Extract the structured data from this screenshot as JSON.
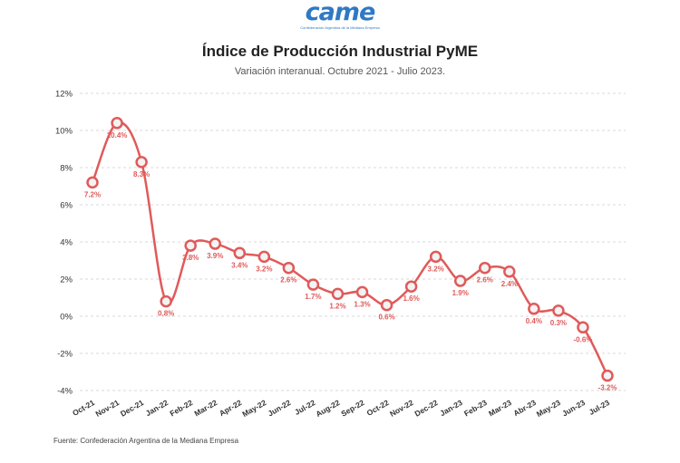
{
  "logo": {
    "text": "came",
    "subtext": "Confederación Argentina de la Mediana Empresa"
  },
  "source": "Fuente: Confederación Argentina de la Mediana Empresa",
  "colors": {
    "series": "#e05a5a",
    "marker_fill": "#f3f3f3",
    "grid": "#d9d9d9",
    "logo": "#2f79c4"
  },
  "chart_data": {
    "type": "line",
    "title": "Índice de Producción Industrial PyME",
    "subtitle": "Variación interanual. Octubre 2021 - Julio 2023.",
    "xlabel": "",
    "ylabel": "",
    "categories": [
      "Oct-21",
      "Nov-21",
      "Dec-21",
      "Jan-22",
      "Feb-22",
      "Mar-22",
      "Apr-22",
      "May-22",
      "Jun-22",
      "Jul-22",
      "Aug-22",
      "Sep-22",
      "Oct-22",
      "Nov-22",
      "Dec-22",
      "Jan-23",
      "Feb-23",
      "Mar-23",
      "Abr-23",
      "May-23",
      "Jun-23",
      "Jul-23"
    ],
    "values": [
      7.2,
      10.4,
      8.3,
      0.8,
      3.8,
      3.9,
      3.4,
      3.2,
      2.6,
      1.7,
      1.2,
      1.3,
      0.6,
      1.6,
      3.2,
      1.9,
      2.6,
      2.4,
      0.4,
      0.3,
      -0.6,
      -3.2
    ],
    "data_labels": [
      "7.2%",
      "10.4%",
      "8.3%",
      "0.8%",
      "3.8%",
      "3.9%",
      "3.4%",
      "3.2%",
      "2.6%",
      "1.7%",
      "1.2%",
      "1.3%",
      "0.6%",
      "1.6%",
      "3.2%",
      "1.9%",
      "2.6%",
      "2.4%",
      "0.4%",
      "0.3%",
      "-0.6%",
      "-3.2%"
    ],
    "yticks": [
      12,
      10,
      8,
      6,
      4,
      2,
      0,
      -2,
      -4
    ],
    "ytick_labels": [
      "12%",
      "10%",
      "8%",
      "6%",
      "4%",
      "2%",
      "0%",
      "-2%",
      "-4%"
    ],
    "ylim": [
      -4,
      12
    ],
    "grid": true,
    "legend": "none"
  }
}
